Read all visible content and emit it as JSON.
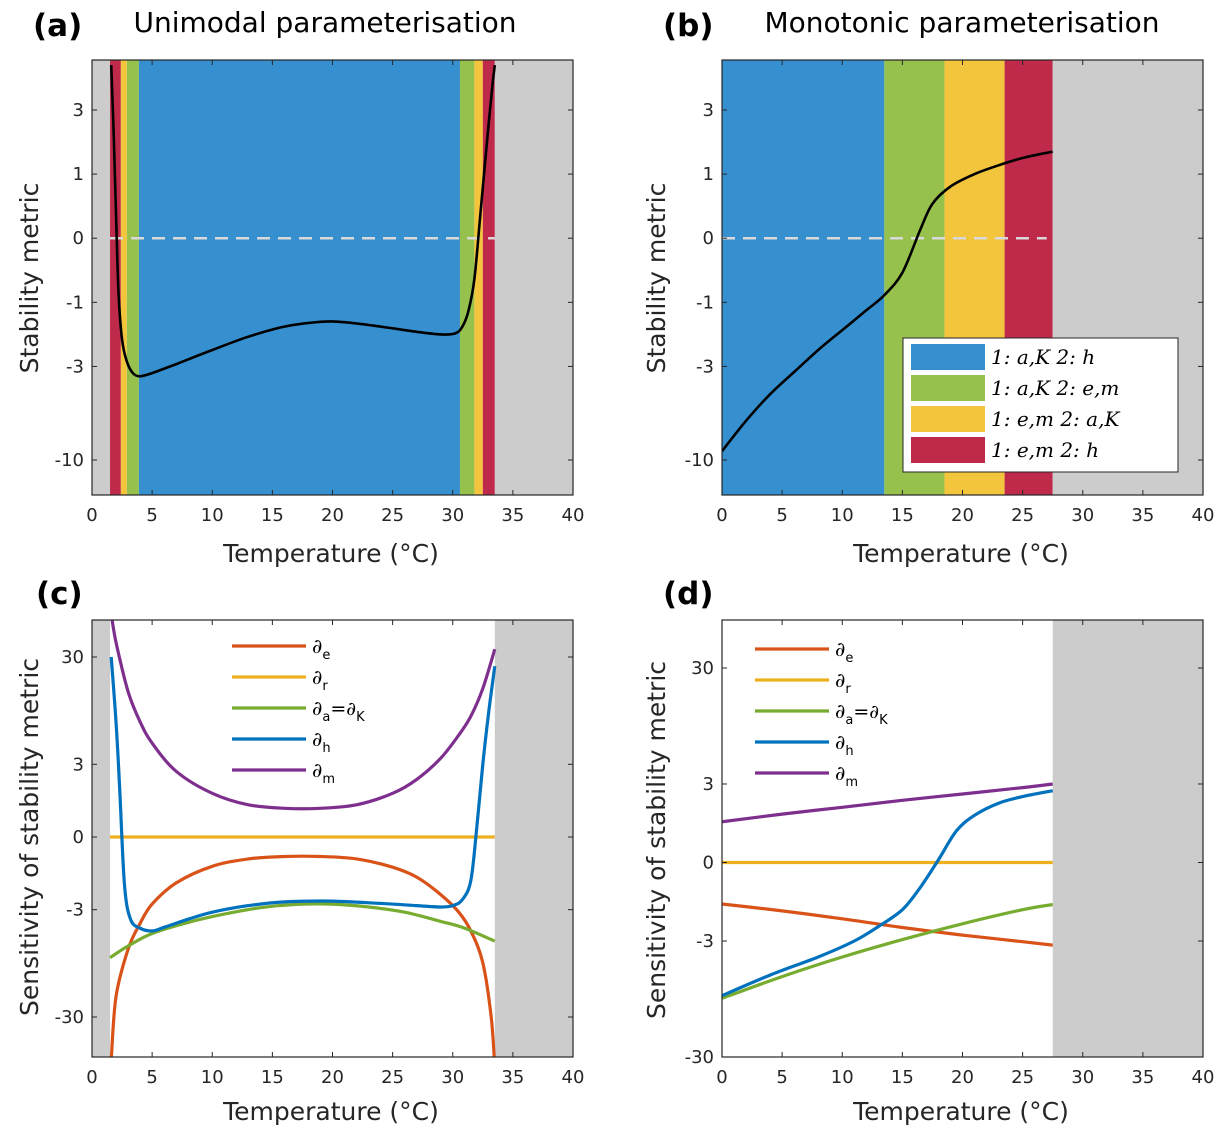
{
  "chart_data": [
    {
      "panel": "(a)",
      "type": "area",
      "title": "Unimodal parameterisation",
      "xlabel": "Temperature (°C)",
      "ylabel": "Stability metric",
      "xlim": [
        0,
        40
      ],
      "xticks": [
        "0",
        "5",
        "10",
        "15",
        "20",
        "25",
        "30",
        "35",
        "40"
      ],
      "yticks": [
        "3",
        "1",
        "0",
        "-1",
        "-3",
        "-10"
      ],
      "bands": [
        {
          "x0": 0,
          "x1": 1.5,
          "color": "#cccccc"
        },
        {
          "x0": 1.5,
          "x1": 2.4,
          "color": "#bf2a4b"
        },
        {
          "x0": 2.4,
          "x1": 2.9,
          "color": "#f2c53d"
        },
        {
          "x0": 2.9,
          "x1": 3.9,
          "color": "#96c14d"
        },
        {
          "x0": 3.9,
          "x1": 30.6,
          "color": "#3690cf"
        },
        {
          "x0": 30.6,
          "x1": 31.8,
          "color": "#96c14d"
        },
        {
          "x0": 31.8,
          "x1": 32.5,
          "color": "#f2c53d"
        },
        {
          "x0": 32.5,
          "x1": 33.5,
          "color": "#bf2a4b"
        },
        {
          "x0": 33.5,
          "x1": 40,
          "color": "#cccccc"
        }
      ],
      "zero_line": {
        "x0": 1.5,
        "x1": 33.5
      },
      "series": [
        {
          "color": "#000000",
          "points": [
            [
              1.6,
              5.5
            ],
            [
              1.8,
              2.2
            ],
            [
              2.0,
              0.3
            ],
            [
              2.2,
              -0.8
            ],
            [
              2.5,
              -2.0
            ],
            [
              2.9,
              -2.8
            ],
            [
              3.4,
              -3.3
            ],
            [
              4.0,
              -3.45
            ],
            [
              5,
              -3.3
            ],
            [
              7,
              -2.9
            ],
            [
              10,
              -2.35
            ],
            [
              13,
              -1.9
            ],
            [
              16,
              -1.6
            ],
            [
              19,
              -1.47
            ],
            [
              21,
              -1.48
            ],
            [
              24,
              -1.6
            ],
            [
              27,
              -1.75
            ],
            [
              29,
              -1.83
            ],
            [
              30.2,
              -1.8
            ],
            [
              30.8,
              -1.6
            ],
            [
              31.3,
              -1.2
            ],
            [
              31.8,
              -0.55
            ],
            [
              32.3,
              0.3
            ],
            [
              32.7,
              1.3
            ],
            [
              33.0,
              2.5
            ],
            [
              33.3,
              4.2
            ],
            [
              33.5,
              5.5
            ]
          ]
        }
      ]
    },
    {
      "panel": "(b)",
      "type": "area",
      "title": "Monotonic parameterisation",
      "xlabel": "Temperature (°C)",
      "ylabel": "Stability metric",
      "xlim": [
        0,
        40
      ],
      "xticks": [
        "0",
        "5",
        "10",
        "15",
        "20",
        "25",
        "30",
        "35",
        "40"
      ],
      "yticks": [
        "3",
        "1",
        "0",
        "-1",
        "-3",
        "-10"
      ],
      "bands": [
        {
          "x0": 0,
          "x1": 13.5,
          "color": "#3690cf"
        },
        {
          "x0": 13.5,
          "x1": 18.5,
          "color": "#96c14d"
        },
        {
          "x0": 18.5,
          "x1": 23.5,
          "color": "#f2c53d"
        },
        {
          "x0": 23.5,
          "x1": 27.5,
          "color": "#bf2a4b"
        },
        {
          "x0": 27.5,
          "x1": 40,
          "color": "#cccccc"
        }
      ],
      "zero_line": {
        "x0": 0,
        "x1": 27
      },
      "series": [
        {
          "color": "#000000",
          "points": [
            [
              0,
              -9.0
            ],
            [
              2,
              -6.2
            ],
            [
              4,
              -4.4
            ],
            [
              6,
              -3.25
            ],
            [
              8,
              -2.35
            ],
            [
              10,
              -1.7
            ],
            [
              12,
              -1.18
            ],
            [
              13.5,
              -0.85
            ],
            [
              15,
              -0.45
            ],
            [
              16.5,
              0.1
            ],
            [
              17.5,
              0.45
            ],
            [
              19,
              0.75
            ],
            [
              21,
              1.0
            ],
            [
              23,
              1.2
            ],
            [
              25,
              1.38
            ],
            [
              27.5,
              1.55
            ]
          ]
        }
      ],
      "legend": {
        "placement": "lower-right",
        "entries": [
          {
            "color": "#3690cf",
            "label": "1: a,K   2: h"
          },
          {
            "color": "#96c14d",
            "label": "1: a,K   2: e,m"
          },
          {
            "color": "#f2c53d",
            "label": "1: e,m   2: a,K"
          },
          {
            "color": "#bf2a4b",
            "label": "1: e,m   2: h"
          }
        ]
      }
    },
    {
      "panel": "(c)",
      "type": "line",
      "xlabel": "Temperature (°C)",
      "ylabel": "Sensitivity of stability metric",
      "xlim": [
        0,
        40
      ],
      "xticks": [
        "0",
        "5",
        "10",
        "15",
        "20",
        "25",
        "30",
        "35",
        "40"
      ],
      "yticks": [
        "30",
        "3",
        "0",
        "-3",
        "-30"
      ],
      "bands": [
        {
          "x0": 0,
          "x1": 1.5,
          "color": "#cccccc"
        },
        {
          "x0": 33.5,
          "x1": 40,
          "color": "#cccccc"
        }
      ],
      "legend": {
        "placement": "top-center",
        "entries": [
          {
            "color": "#d95319",
            "label": "∂",
            "sub": "e"
          },
          {
            "color": "#edb120",
            "label": "∂",
            "sub": "r"
          },
          {
            "color": "#77ac30",
            "label": "∂",
            "sub": "a",
            "label2": "=∂",
            "sub2": "K"
          },
          {
            "color": "#0072bd",
            "label": "∂",
            "sub": "h"
          },
          {
            "color": "#7e2f8e",
            "label": "∂",
            "sub": "m"
          }
        ]
      },
      "series": [
        {
          "id": "e",
          "color": "#d95319",
          "points": [
            [
              1.6,
              -70
            ],
            [
              2,
              -20
            ],
            [
              3,
              -7.5
            ],
            [
              4,
              -4.2
            ],
            [
              5,
              -2.6
            ],
            [
              7,
              -1.4
            ],
            [
              10,
              -0.75
            ],
            [
              13,
              -0.52
            ],
            [
              16,
              -0.45
            ],
            [
              19,
              -0.45
            ],
            [
              22,
              -0.52
            ],
            [
              25,
              -0.78
            ],
            [
              27,
              -1.15
            ],
            [
              29,
              -2.0
            ],
            [
              30.5,
              -3.2
            ],
            [
              31.5,
              -5
            ],
            [
              32.5,
              -10
            ],
            [
              33.2,
              -30
            ],
            [
              33.5,
              -80
            ]
          ]
        },
        {
          "id": "r",
          "color": "#edb120",
          "points": [
            [
              1.5,
              0
            ],
            [
              33.5,
              0
            ]
          ]
        },
        {
          "id": "a",
          "color": "#77ac30",
          "points": [
            [
              1.5,
              -9
            ],
            [
              3,
              -7
            ],
            [
              5,
              -5.3
            ],
            [
              8,
              -4.1
            ],
            [
              11,
              -3.35
            ],
            [
              14,
              -2.85
            ],
            [
              17,
              -2.62
            ],
            [
              20,
              -2.6
            ],
            [
              23,
              -2.8
            ],
            [
              26,
              -3.2
            ],
            [
              29,
              -4.0
            ],
            [
              31,
              -4.7
            ],
            [
              33.5,
              -6.3
            ]
          ]
        },
        {
          "id": "h",
          "color": "#0072bd",
          "points": [
            [
              1.6,
              30
            ],
            [
              2.0,
              8
            ],
            [
              2.3,
              1.5
            ],
            [
              2.7,
              -1.5
            ],
            [
              3.2,
              -3.8
            ],
            [
              4,
              -4.7
            ],
            [
              5,
              -5.0
            ],
            [
              6,
              -4.6
            ],
            [
              8,
              -3.8
            ],
            [
              10,
              -3.2
            ],
            [
              13,
              -2.7
            ],
            [
              16,
              -2.45
            ],
            [
              20,
              -2.4
            ],
            [
              24,
              -2.55
            ],
            [
              27,
              -2.7
            ],
            [
              29,
              -2.8
            ],
            [
              30,
              -2.7
            ],
            [
              30.8,
              -2.3
            ],
            [
              31.5,
              -1.3
            ],
            [
              32.0,
              0.2
            ],
            [
              32.5,
              3
            ],
            [
              33.0,
              10
            ],
            [
              33.5,
              25
            ]
          ]
        },
        {
          "id": "m",
          "color": "#7e2f8e",
          "points": [
            [
              1.6,
              70
            ],
            [
              2,
              40
            ],
            [
              3,
              15
            ],
            [
              4,
              8
            ],
            [
              5,
              5
            ],
            [
              7,
              2.5
            ],
            [
              10,
              1.3
            ],
            [
              13,
              0.85
            ],
            [
              16,
              0.73
            ],
            [
              19,
              0.73
            ],
            [
              22,
              0.85
            ],
            [
              25,
              1.3
            ],
            [
              27,
              2.0
            ],
            [
              29,
              3.5
            ],
            [
              30.5,
              6
            ],
            [
              31.5,
              9
            ],
            [
              32.5,
              16
            ],
            [
              33.5,
              35
            ]
          ]
        }
      ]
    },
    {
      "panel": "(d)",
      "type": "line",
      "xlabel": "Temperature (°C)",
      "ylabel": "Sensitivity of stability metric",
      "xlim": [
        0,
        40
      ],
      "xticks": [
        "0",
        "5",
        "10",
        "15",
        "20",
        "25",
        "30",
        "35",
        "40"
      ],
      "yticks": [
        "30",
        "3",
        "0",
        "-3",
        "-30"
      ],
      "bands": [
        {
          "x0": 27.5,
          "x1": 40,
          "color": "#cccccc"
        }
      ],
      "legend": {
        "placement": "top-left",
        "entries": [
          {
            "color": "#d95319",
            "label": "∂",
            "sub": "e"
          },
          {
            "color": "#edb120",
            "label": "∂",
            "sub": "r"
          },
          {
            "color": "#77ac30",
            "label": "∂",
            "sub": "a",
            "label2": "=∂",
            "sub2": "K"
          },
          {
            "color": "#0072bd",
            "label": "∂",
            "sub": "h"
          },
          {
            "color": "#7e2f8e",
            "label": "∂",
            "sub": "m"
          }
        ]
      },
      "series": [
        {
          "id": "e",
          "color": "#d95319",
          "points": [
            [
              0,
              -1.08
            ],
            [
              5,
              -1.35
            ],
            [
              10,
              -1.7
            ],
            [
              15,
              -2.15
            ],
            [
              20,
              -2.6
            ],
            [
              25,
              -3.05
            ],
            [
              27.5,
              -3.3
            ]
          ]
        },
        {
          "id": "r",
          "color": "#edb120",
          "points": [
            [
              0,
              0
            ],
            [
              27.5,
              0
            ]
          ]
        },
        {
          "id": "a",
          "color": "#77ac30",
          "points": [
            [
              0,
              -10
            ],
            [
              5,
              -6.5
            ],
            [
              10,
              -4.3
            ],
            [
              15,
              -2.9
            ],
            [
              20,
              -1.95
            ],
            [
              25,
              -1.3
            ],
            [
              27.5,
              -1.1
            ]
          ]
        },
        {
          "id": "h",
          "color": "#0072bd",
          "points": [
            [
              0,
              -9.5
            ],
            [
              4,
              -6.3
            ],
            [
              8,
              -4.3
            ],
            [
              11,
              -3.0
            ],
            [
              13,
              -2.1
            ],
            [
              15,
              -1.3
            ],
            [
              16.5,
              -0.55
            ],
            [
              18,
              0.05
            ],
            [
              19.5,
              0.75
            ],
            [
              21,
              1.3
            ],
            [
              23,
              1.85
            ],
            [
              25,
              2.2
            ],
            [
              27.5,
              2.55
            ]
          ]
        },
        {
          "id": "m",
          "color": "#7e2f8e",
          "points": [
            [
              0,
              1.05
            ],
            [
              5,
              1.35
            ],
            [
              10,
              1.65
            ],
            [
              15,
              2.0
            ],
            [
              20,
              2.35
            ],
            [
              25,
              2.75
            ],
            [
              27.5,
              3.0
            ]
          ]
        }
      ]
    }
  ]
}
